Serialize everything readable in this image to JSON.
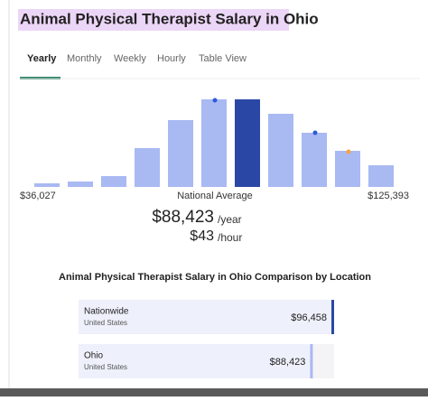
{
  "header": {
    "title": "Animal Physical Therapist Salary in Ohio"
  },
  "tabs": [
    "Yearly",
    "Monthly",
    "Weekly",
    "Hourly",
    "Table View"
  ],
  "active_tab": 0,
  "chart_data": [
    {
      "type": "histogram-bar",
      "values": [
        4,
        6,
        12,
        43,
        74,
        97,
        97,
        81,
        60,
        40,
        24
      ],
      "color": "#a9b9f2",
      "highlight_color": "#2b47a6",
      "highlight": 6,
      "xticks": [
        {
          "value": 36027,
          "label": "$36,027"
        },
        {
          "value": 125393,
          "label": "$125,393"
        }
      ],
      "annotation": "National Average"
    },
    {
      "type": "hbar",
      "title": "Animal Physical Therapist Salary in Ohio Comparison by Location",
      "categories": [
        "Nationwide",
        "Ohio"
      ],
      "sublabels": [
        "United States",
        "United States"
      ],
      "values": [
        96458,
        88423
      ],
      "value_labels": [
        "$96,458",
        "$88,423"
      ],
      "colors": [
        "#2b47a6",
        "#a9b9f2"
      ]
    }
  ],
  "summary": {
    "yearly": "$88,423",
    "yearly_unit": "/year",
    "hourly": "$43",
    "hourly_unit": "/hour"
  }
}
